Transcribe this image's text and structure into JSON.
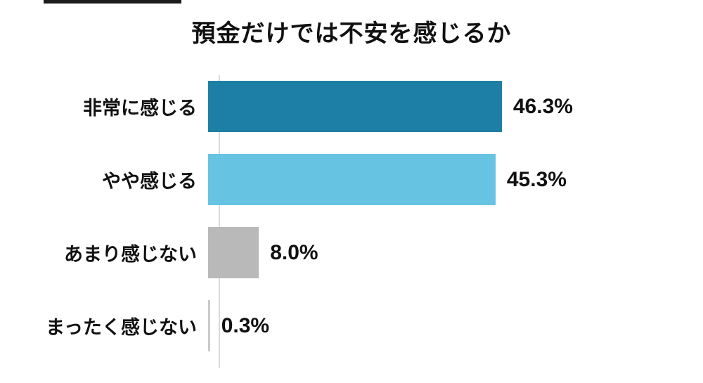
{
  "chart_data": {
    "type": "bar",
    "orientation": "horizontal",
    "title": "預金だけでは不安を感じるか",
    "categories": [
      "非常に感じる",
      "やや感じる",
      "あまり感じない",
      "まったく感じない"
    ],
    "values": [
      46.3,
      45.3,
      8.0,
      0.3
    ],
    "xlabel": "",
    "ylabel": "",
    "xlim": [
      0,
      78
    ],
    "grid": false,
    "legend": "none",
    "axis_line_color": "#d9d9d9",
    "rows": [
      {
        "label": "非常に感じる",
        "value": 46.3,
        "value_label": "46.3%",
        "color": "#1e7fa6"
      },
      {
        "label": "やや感じる",
        "value": 45.3,
        "value_label": "45.3%",
        "color": "#66c4e2"
      },
      {
        "label": "あまり感じない",
        "value": 8.0,
        "value_label": "8.0%",
        "color": "#b9b9b9"
      },
      {
        "label": "まったく感じない",
        "value": 0.3,
        "value_label": "0.3%",
        "color": "#c9c9c9"
      }
    ]
  }
}
